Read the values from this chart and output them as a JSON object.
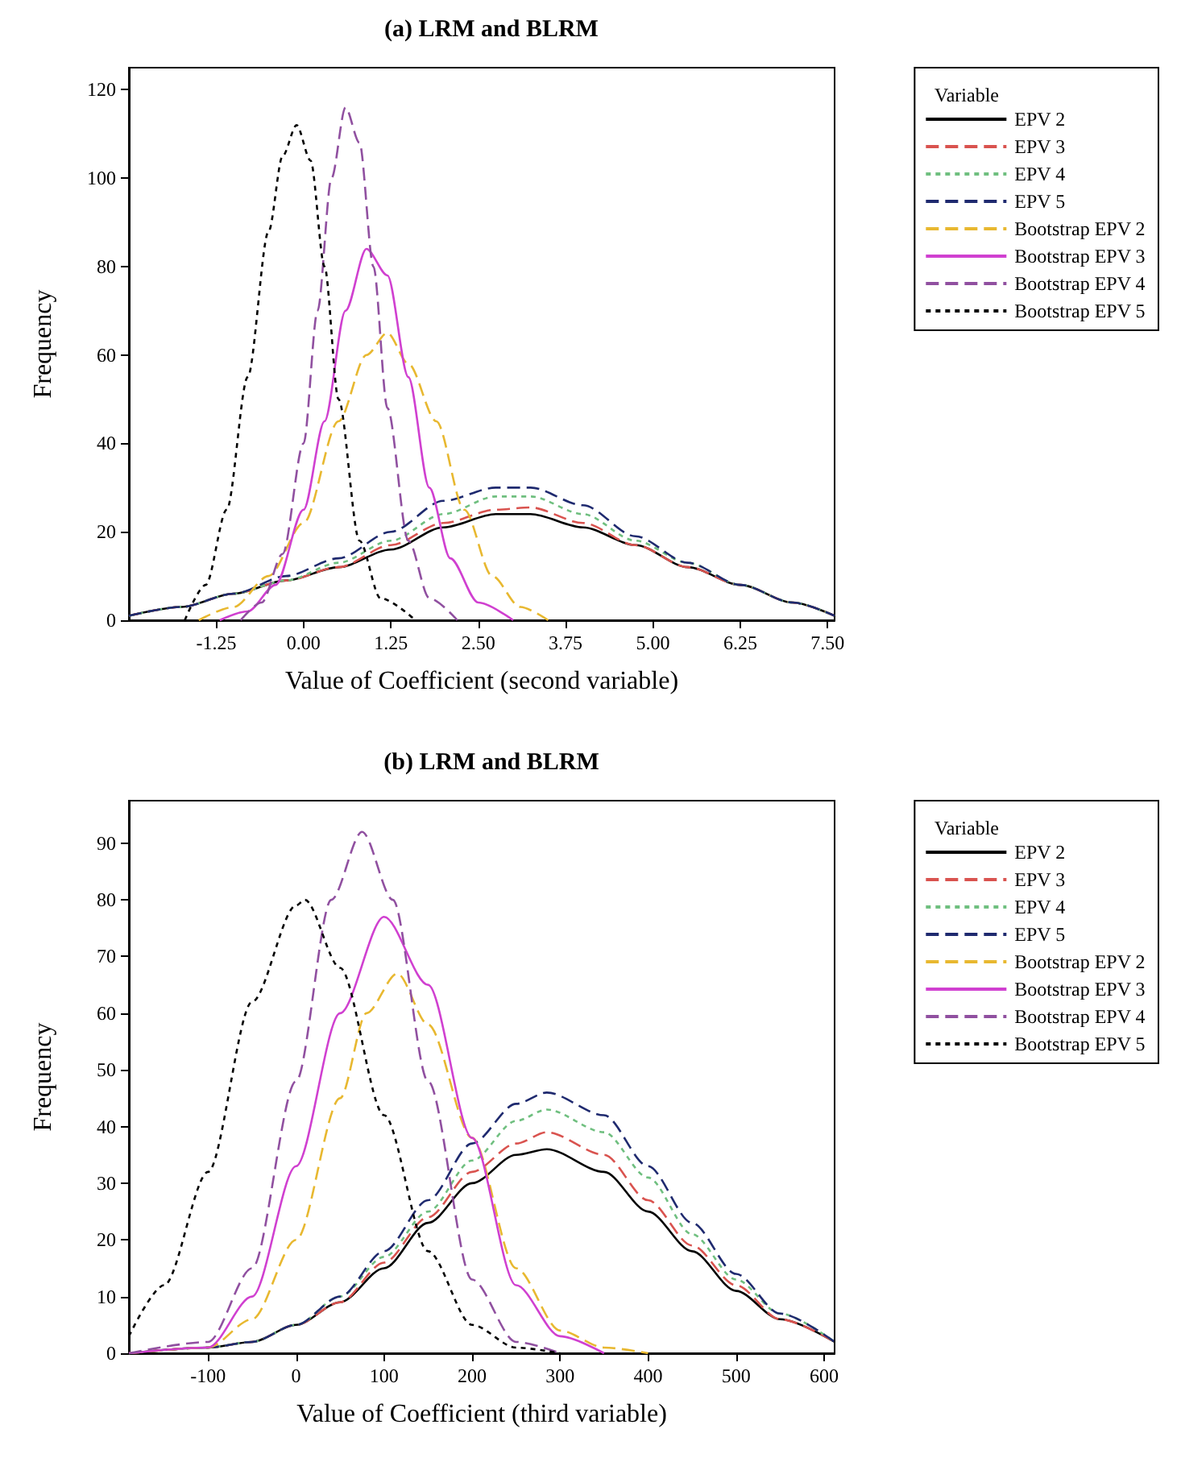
{
  "chart_data": [
    {
      "type": "line",
      "title": "(a) LRM and BLRM",
      "xlabel": "Value of Coefficient (second variable)",
      "ylabel": "Frequency",
      "legend_title": "Variable",
      "legend": "right",
      "grid": false,
      "marker": "none",
      "xlim": [
        -2.5,
        7.6
      ],
      "xticks": [
        {
          "value": -1.25,
          "label": "-1.25"
        },
        {
          "value": 0,
          "label": "0.00"
        },
        {
          "value": 1.25,
          "label": "1.25"
        },
        {
          "value": 2.5,
          "label": "2.50"
        },
        {
          "value": 3.75,
          "label": "3.75"
        },
        {
          "value": 5,
          "label": "5.00"
        },
        {
          "value": 6.25,
          "label": "6.25"
        },
        {
          "value": 7.5,
          "label": "7.50"
        }
      ],
      "ylim": [
        0,
        125
      ],
      "yticks": [
        0,
        20,
        40,
        60,
        80,
        100,
        120
      ],
      "series": [
        {
          "name": "EPV 2",
          "color": "#000000",
          "line_style": "solid",
          "x": [
            -2.5,
            -1.75,
            -1,
            -0.25,
            0.5,
            1.25,
            2,
            2.75,
            3.25,
            4,
            4.75,
            5.5,
            6.25,
            7,
            7.6
          ],
          "values": [
            1,
            3,
            6,
            9,
            12,
            16,
            21,
            24,
            24,
            21,
            17,
            12,
            8,
            4,
            1
          ]
        },
        {
          "name": "EPV 3",
          "color": "#d9534f",
          "line_style": "dashed",
          "x": [
            -2.5,
            -1.75,
            -1,
            -0.25,
            0.5,
            1.25,
            2,
            2.75,
            3.25,
            4,
            4.75,
            5.5,
            6.25,
            7,
            7.6
          ],
          "values": [
            1,
            3,
            6,
            9,
            12,
            17,
            22,
            25,
            25.5,
            22,
            17,
            12,
            8,
            4,
            1
          ]
        },
        {
          "name": "EPV 4",
          "color": "#6fbf7f",
          "line_style": "dotted",
          "x": [
            -2.5,
            -1.75,
            -1,
            -0.25,
            0.5,
            1.25,
            2,
            2.75,
            3.25,
            4,
            4.75,
            5.5,
            6.25,
            7,
            7.6
          ],
          "values": [
            1,
            3,
            6,
            9,
            13,
            18,
            24,
            28,
            28,
            24,
            18,
            13,
            8,
            4,
            1
          ]
        },
        {
          "name": "EPV 5",
          "color": "#1f2a6f",
          "line_style": "dashed",
          "x": [
            -2.5,
            -1.75,
            -1,
            -0.25,
            0.5,
            1.25,
            2,
            2.75,
            3.25,
            4,
            4.75,
            5.5,
            6.25,
            7,
            7.6
          ],
          "values": [
            1,
            3,
            6,
            10,
            14,
            20,
            27,
            30,
            30,
            26,
            19,
            13,
            8,
            4,
            1
          ]
        },
        {
          "name": "Bootstrap EPV 2",
          "color": "#e8b830",
          "line_style": "dashed",
          "x": [
            -1.5,
            -1,
            -0.5,
            0,
            0.5,
            0.9,
            1.2,
            1.5,
            1.9,
            2.3,
            2.7,
            3.1,
            3.5
          ],
          "values": [
            0,
            3,
            10,
            22,
            45,
            60,
            65,
            58,
            45,
            25,
            10,
            3,
            0
          ]
        },
        {
          "name": "Bootstrap EPV 3",
          "color": "#d040d0",
          "line_style": "solid",
          "x": [
            -1.2,
            -0.8,
            -0.4,
            0,
            0.3,
            0.6,
            0.9,
            1.2,
            1.5,
            1.8,
            2.1,
            2.5,
            3
          ],
          "values": [
            0,
            2,
            8,
            25,
            45,
            70,
            84,
            78,
            55,
            30,
            14,
            4,
            0
          ]
        },
        {
          "name": "Bootstrap EPV 4",
          "color": "#9050a0",
          "line_style": "dashed",
          "x": [
            -0.9,
            -0.6,
            -0.3,
            0,
            0.2,
            0.4,
            0.6,
            0.8,
            1,
            1.2,
            1.5,
            1.8,
            2.2
          ],
          "values": [
            0,
            4,
            15,
            40,
            70,
            100,
            116,
            108,
            80,
            48,
            18,
            5,
            0
          ]
        },
        {
          "name": "Bootstrap EPV 5",
          "color": "#000000",
          "line_style": "dotted",
          "x": [
            -1.7,
            -1.4,
            -1.1,
            -0.8,
            -0.5,
            -0.3,
            -0.1,
            0.1,
            0.3,
            0.5,
            0.8,
            1.1,
            1.6
          ],
          "values": [
            0,
            8,
            25,
            55,
            88,
            105,
            112,
            104,
            80,
            50,
            18,
            5,
            0
          ]
        }
      ]
    },
    {
      "type": "line",
      "title": "(b) LRM and BLRM",
      "xlabel": "Value of Coefficient (third variable)",
      "ylabel": "Frequency",
      "legend_title": "Variable",
      "legend": "right",
      "grid": false,
      "marker": "none",
      "xlim": [
        -190,
        612
      ],
      "xticks": [
        -100,
        0,
        100,
        200,
        300,
        400,
        500,
        600
      ],
      "ylim": [
        0,
        97.5
      ],
      "yticks": [
        0,
        10,
        20,
        30,
        40,
        50,
        60,
        70,
        80,
        90
      ],
      "series": [
        {
          "name": "EPV 2",
          "color": "#000000",
          "line_style": "solid",
          "x": [
            -190,
            -100,
            -50,
            0,
            50,
            100,
            150,
            200,
            250,
            285,
            350,
            400,
            450,
            500,
            550,
            612
          ],
          "values": [
            0,
            1,
            2,
            5,
            9,
            15,
            23,
            30,
            35,
            36,
            32,
            25,
            18,
            11,
            6,
            2
          ]
        },
        {
          "name": "EPV 3",
          "color": "#d9534f",
          "line_style": "dashed",
          "x": [
            -190,
            -100,
            -50,
            0,
            50,
            100,
            150,
            200,
            250,
            285,
            350,
            400,
            450,
            500,
            550,
            612
          ],
          "values": [
            0,
            1,
            2,
            5,
            9,
            16,
            24,
            32,
            37,
            39,
            35,
            27,
            19,
            12,
            6,
            2
          ]
        },
        {
          "name": "EPV 4",
          "color": "#6fbf7f",
          "line_style": "dotted",
          "x": [
            -190,
            -100,
            -50,
            0,
            50,
            100,
            150,
            200,
            250,
            285,
            350,
            400,
            450,
            500,
            550,
            612
          ],
          "values": [
            0,
            1,
            2,
            5,
            10,
            17,
            25,
            34,
            41,
            43,
            39,
            31,
            21,
            13,
            7,
            2
          ]
        },
        {
          "name": "EPV 5",
          "color": "#1f2a6f",
          "line_style": "dashed",
          "x": [
            -190,
            -100,
            -50,
            0,
            50,
            100,
            150,
            200,
            250,
            285,
            350,
            400,
            450,
            500,
            550,
            612
          ],
          "values": [
            0,
            1,
            2,
            5,
            10,
            18,
            27,
            37,
            44,
            46,
            42,
            33,
            23,
            14,
            7,
            2
          ]
        },
        {
          "name": "Bootstrap EPV 2",
          "color": "#e8b830",
          "line_style": "dashed",
          "x": [
            -190,
            -100,
            -50,
            0,
            50,
            80,
            115,
            150,
            200,
            250,
            300,
            350,
            400
          ],
          "values": [
            0,
            1,
            6,
            20,
            45,
            60,
            67,
            58,
            38,
            15,
            4,
            1,
            0
          ]
        },
        {
          "name": "Bootstrap EPV 3",
          "color": "#d040d0",
          "line_style": "solid",
          "x": [
            -190,
            -100,
            -50,
            0,
            50,
            100,
            150,
            200,
            250,
            300,
            350
          ],
          "values": [
            0,
            1,
            10,
            33,
            60,
            77,
            65,
            38,
            12,
            3,
            0
          ]
        },
        {
          "name": "Bootstrap EPV 4",
          "color": "#9050a0",
          "line_style": "dashed",
          "x": [
            -190,
            -100,
            -50,
            0,
            40,
            75,
            110,
            150,
            200,
            250,
            300
          ],
          "values": [
            0,
            2,
            15,
            48,
            80,
            92,
            80,
            48,
            13,
            2,
            0
          ]
        },
        {
          "name": "Bootstrap EPV 5",
          "color": "#000000",
          "line_style": "dotted",
          "x": [
            -190,
            -150,
            -100,
            -50,
            0,
            10,
            50,
            100,
            150,
            200,
            250,
            300
          ],
          "values": [
            3,
            12,
            32,
            62,
            79,
            80,
            68,
            42,
            18,
            5,
            1,
            0
          ]
        }
      ]
    }
  ]
}
